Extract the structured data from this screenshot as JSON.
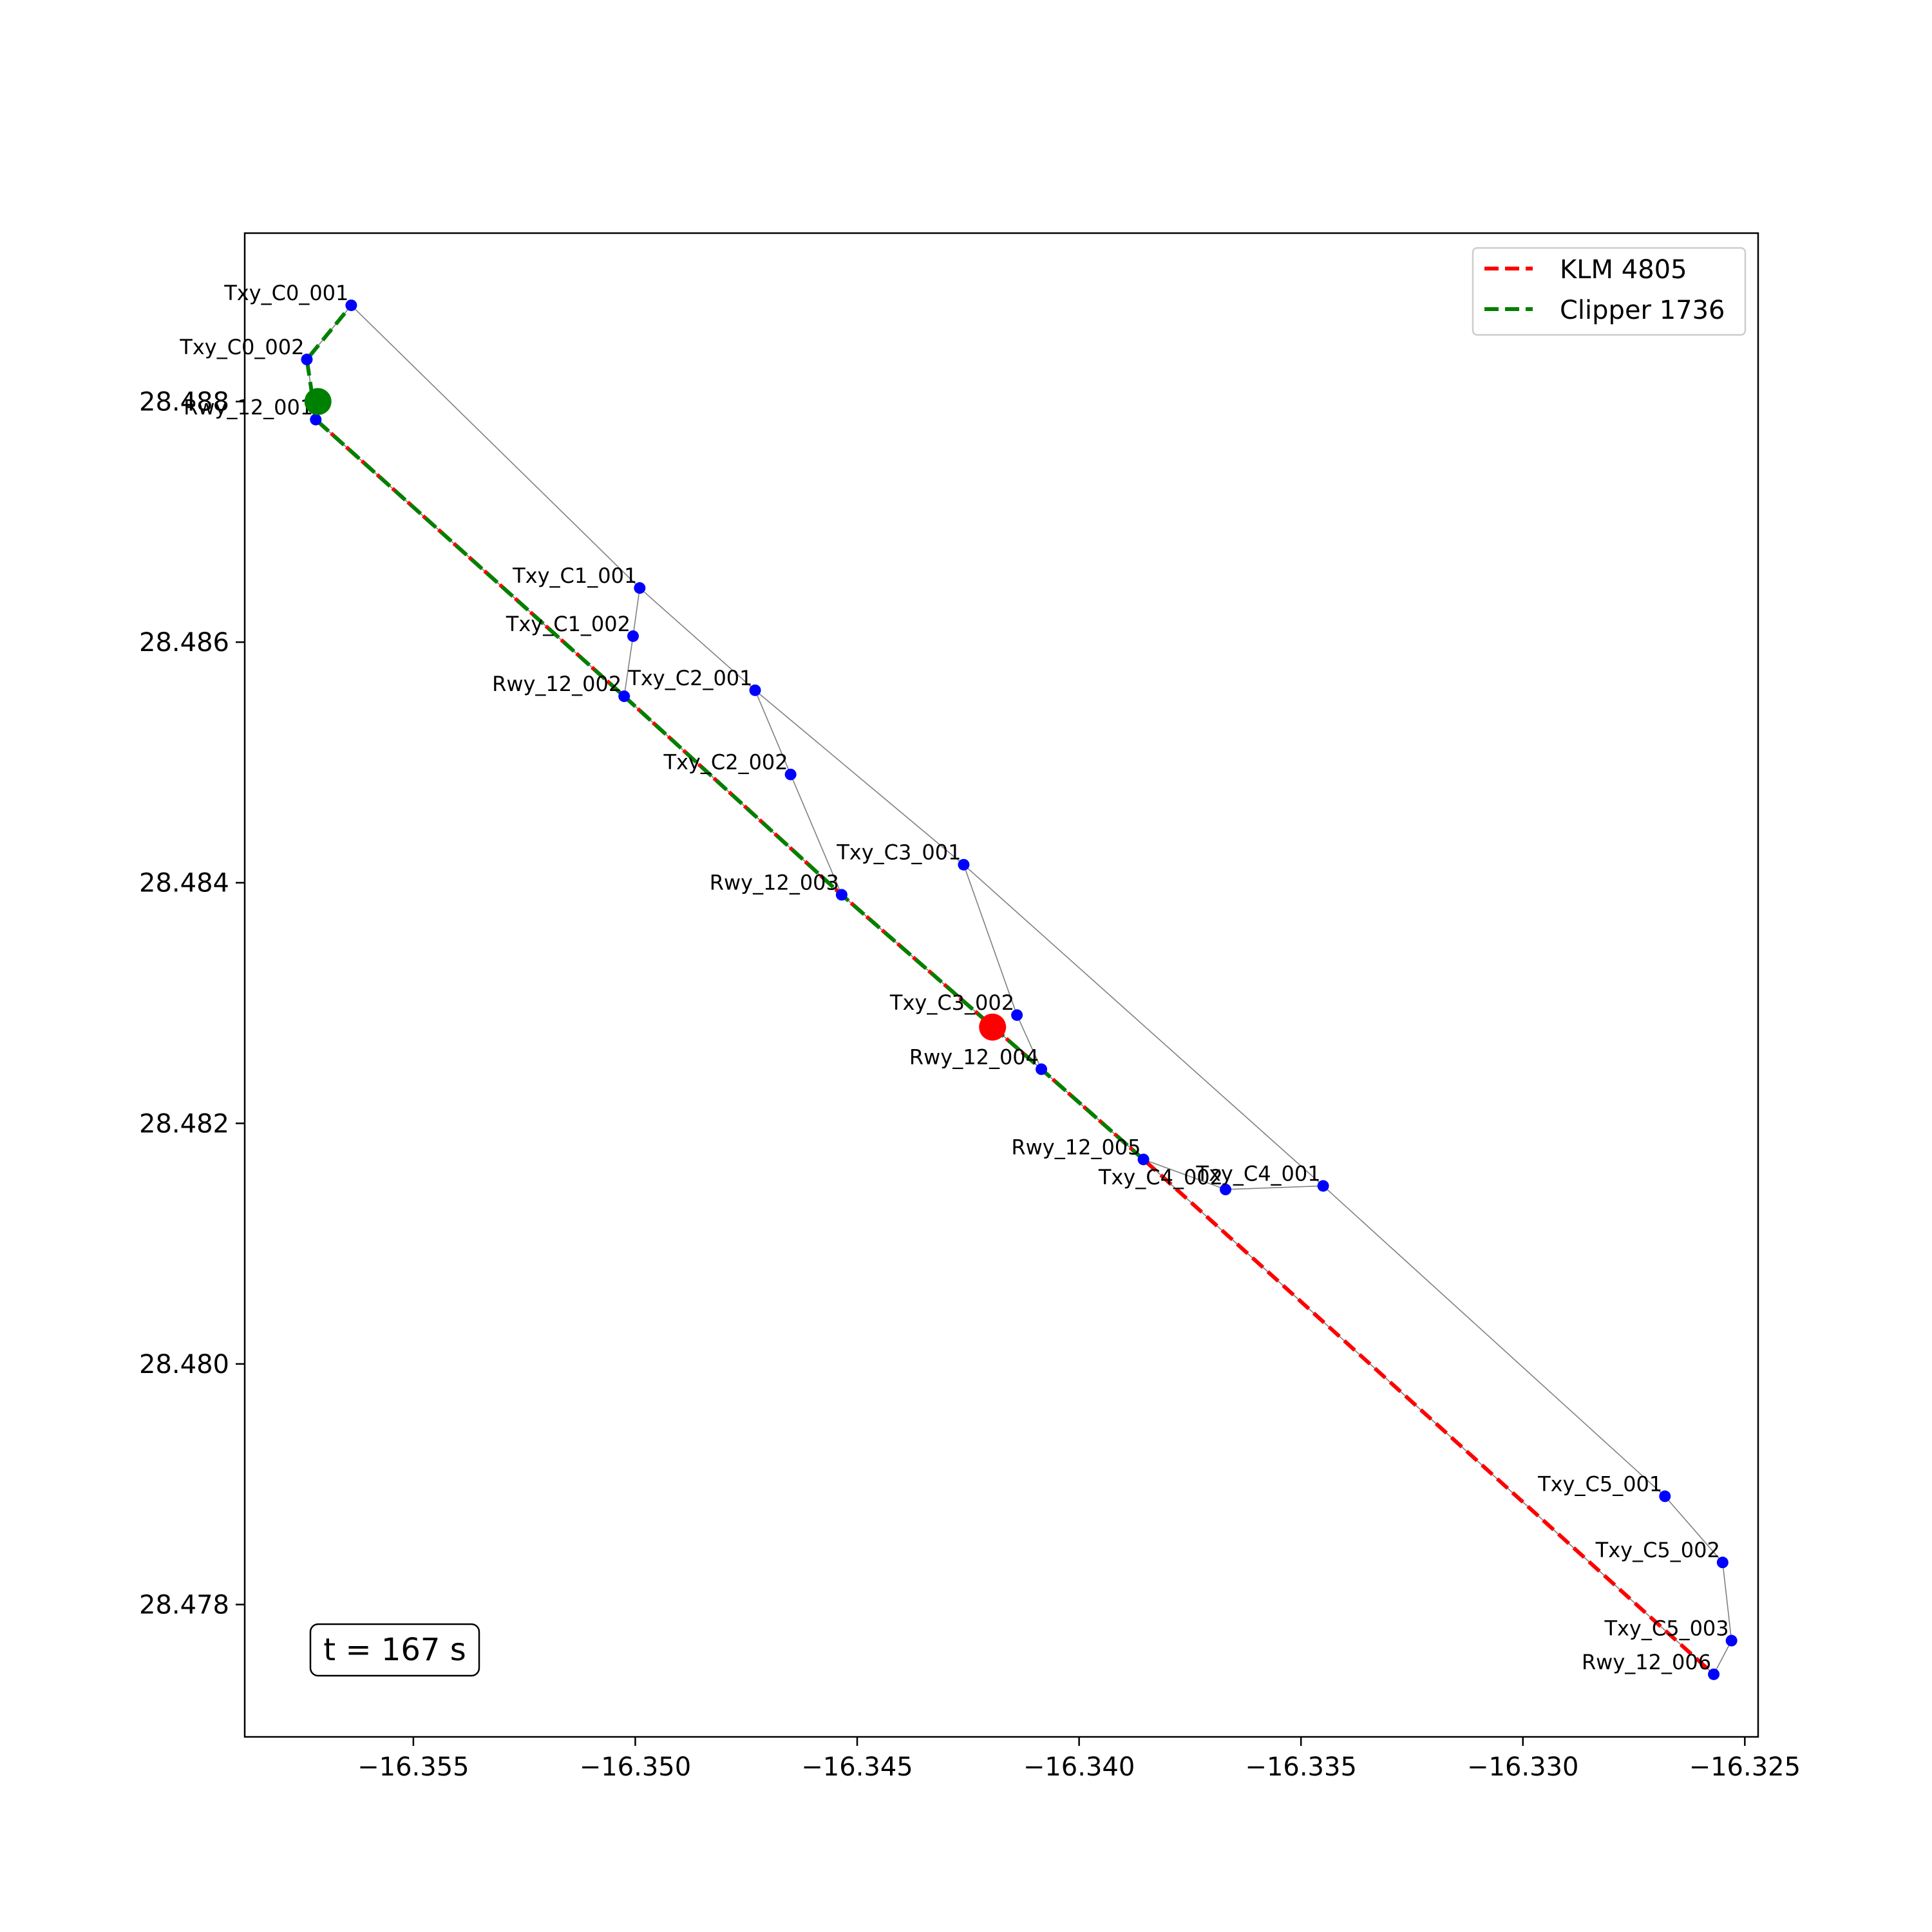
{
  "chart_data": {
    "type": "scatter",
    "title": "",
    "xlabel": "",
    "ylabel": "",
    "xlim": [
      -16.3588,
      -16.3247
    ],
    "ylim": [
      28.4769,
      28.4894
    ],
    "xticks": [
      -16.355,
      -16.35,
      -16.345,
      -16.34,
      -16.335,
      -16.33,
      -16.325
    ],
    "xtick_labels": [
      "−16.355",
      "−16.350",
      "−16.345",
      "−16.340",
      "−16.335",
      "−16.330",
      "−16.325"
    ],
    "yticks": [
      28.478,
      28.48,
      28.482,
      28.484,
      28.486,
      28.488
    ],
    "ytick_labels": [
      "28.478",
      "28.480",
      "28.482",
      "28.484",
      "28.486",
      "28.488"
    ],
    "grid": false,
    "legend_position": "top-right",
    "nodes": [
      {
        "name": "Txy_C0_001",
        "x": -16.3564,
        "y": 28.4888
      },
      {
        "name": "Txy_C0_002",
        "x": -16.3574,
        "y": 28.48835
      },
      {
        "name": "Rwy_12_001",
        "x": -16.3572,
        "y": 28.48785
      },
      {
        "name": "Txy_C1_001",
        "x": -16.3499,
        "y": 28.48645
      },
      {
        "name": "Txy_C1_002",
        "x": -16.35005,
        "y": 28.48605
      },
      {
        "name": "Rwy_12_002",
        "x": -16.35025,
        "y": 28.48555
      },
      {
        "name": "Txy_C2_001",
        "x": -16.3473,
        "y": 28.4856
      },
      {
        "name": "Txy_C2_002",
        "x": -16.3465,
        "y": 28.4849
      },
      {
        "name": "Rwy_12_003",
        "x": -16.34535,
        "y": 28.4839
      },
      {
        "name": "Txy_C3_001",
        "x": -16.3426,
        "y": 28.48415
      },
      {
        "name": "Txy_C3_002",
        "x": -16.3414,
        "y": 28.4829
      },
      {
        "name": "Rwy_12_004",
        "x": -16.34085,
        "y": 28.48245
      },
      {
        "name": "Rwy_12_005",
        "x": -16.33855,
        "y": 28.4817
      },
      {
        "name": "Txy_C4_002",
        "x": -16.3367,
        "y": 28.48145
      },
      {
        "name": "Txy_C4_001",
        "x": -16.3345,
        "y": 28.48148
      },
      {
        "name": "Txy_C5_001",
        "x": -16.3268,
        "y": 28.4789
      },
      {
        "name": "Txy_C5_002",
        "x": -16.3255,
        "y": 28.47835
      },
      {
        "name": "Txy_C5_003",
        "x": -16.3253,
        "y": 28.4777
      },
      {
        "name": "Rwy_12_006",
        "x": -16.3257,
        "y": 28.47742
      }
    ],
    "edges": [
      [
        "Txy_C0_001",
        "Txy_C1_001"
      ],
      [
        "Txy_C1_001",
        "Txy_C2_001"
      ],
      [
        "Txy_C2_001",
        "Txy_C3_001"
      ],
      [
        "Txy_C3_001",
        "Txy_C4_001"
      ],
      [
        "Txy_C4_001",
        "Txy_C5_001"
      ],
      [
        "Txy_C5_001",
        "Txy_C5_002"
      ],
      [
        "Txy_C5_002",
        "Txy_C5_003"
      ],
      [
        "Txy_C5_003",
        "Rwy_12_006"
      ],
      [
        "Txy_C1_001",
        "Txy_C1_002"
      ],
      [
        "Txy_C1_002",
        "Rwy_12_002"
      ],
      [
        "Txy_C2_001",
        "Txy_C2_002"
      ],
      [
        "Txy_C2_002",
        "Rwy_12_003"
      ],
      [
        "Txy_C3_001",
        "Txy_C3_002"
      ],
      [
        "Txy_C3_002",
        "Rwy_12_004"
      ],
      [
        "Rwy_12_005",
        "Txy_C4_002"
      ],
      [
        "Txy_C4_002",
        "Txy_C4_001"
      ],
      [
        "Txy_C0_001",
        "Txy_C0_002"
      ],
      [
        "Txy_C0_002",
        "Rwy_12_001"
      ],
      [
        "Rwy_12_001",
        "Rwy_12_002"
      ],
      [
        "Rwy_12_002",
        "Rwy_12_003"
      ],
      [
        "Rwy_12_003",
        "Rwy_12_004"
      ],
      [
        "Rwy_12_004",
        "Rwy_12_005"
      ],
      [
        "Rwy_12_005",
        "Rwy_12_006"
      ]
    ],
    "series": [
      {
        "name": "KLM 4805",
        "color": "#ff0000",
        "style": "dashed",
        "path": [
          "Rwy_12_001",
          "Rwy_12_002",
          "Rwy_12_003",
          "Rwy_12_004",
          "Rwy_12_005",
          "Rwy_12_006"
        ],
        "position": {
          "x": -16.34195,
          "y": 28.4828
        }
      },
      {
        "name": "Clipper 1736",
        "color": "#008000",
        "style": "dashed",
        "path": [
          "Txy_C0_001",
          "Txy_C0_002",
          "Rwy_12_001",
          "Rwy_12_002",
          "Rwy_12_003",
          "Rwy_12_004",
          "Rwy_12_005"
        ],
        "position": {
          "x": -16.35715,
          "y": 28.488
        }
      }
    ],
    "node_color": "#0000ff",
    "edge_color": "#808080",
    "time_annotation": "t = 167 s"
  }
}
